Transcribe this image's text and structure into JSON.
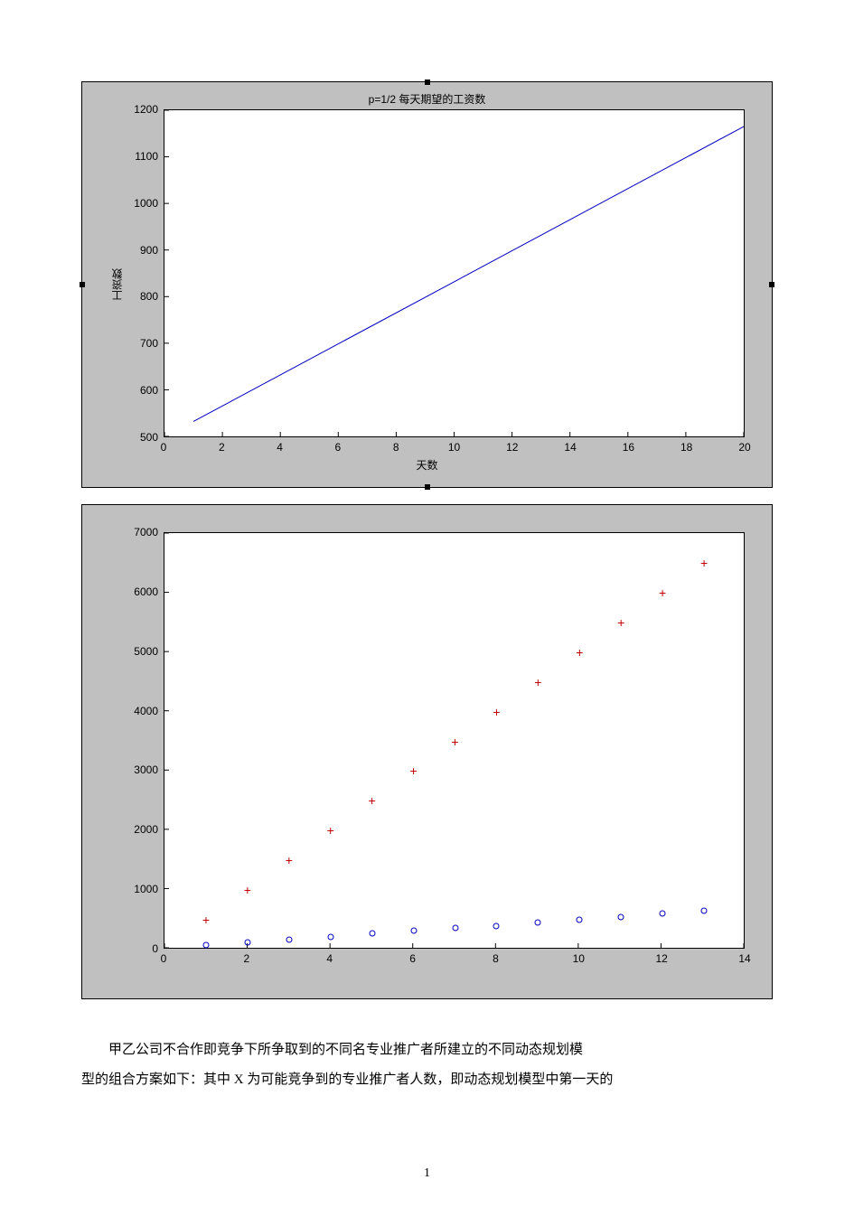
{
  "figure1": {
    "type": "line",
    "title": "p=1/2 每天期望的工资数",
    "xlabel": "天数",
    "ylabel": "工资数",
    "xlim": [
      0,
      20
    ],
    "ylim": [
      500,
      1200
    ],
    "xticks": [
      0,
      2,
      4,
      6,
      8,
      10,
      12,
      14,
      16,
      18,
      20
    ],
    "yticks": [
      500,
      600,
      700,
      800,
      900,
      1000,
      1100,
      1200
    ],
    "line_color": "#0000c0",
    "background_color": "#ffffff",
    "figure_bg": "#c0c0c0",
    "axis_color": "#000000",
    "tick_fontsize": 12,
    "title_fontsize": 12,
    "data": {
      "x": [
        1,
        20
      ],
      "y": [
        532,
        1165
      ]
    },
    "handles": true
  },
  "figure2": {
    "type": "scatter",
    "xlim": [
      0,
      14
    ],
    "ylim": [
      0,
      7000
    ],
    "xticks": [
      0,
      2,
      4,
      6,
      8,
      10,
      12,
      14
    ],
    "yticks": [
      0,
      1000,
      2000,
      3000,
      4000,
      5000,
      6000,
      7000
    ],
    "background_color": "#ffffff",
    "figure_bg": "#c0c0c0",
    "axis_color": "#000000",
    "tick_fontsize": 12,
    "series": [
      {
        "marker": "plus",
        "color": "#c00000",
        "x": [
          1,
          2,
          3,
          4,
          5,
          6,
          7,
          8,
          9,
          10,
          11,
          12,
          13
        ],
        "y": [
          500,
          1000,
          1500,
          2000,
          2500,
          3000,
          3500,
          4000,
          4500,
          5000,
          5500,
          6000,
          6500
        ]
      },
      {
        "marker": "circle",
        "color": "#0000c0",
        "x": [
          1,
          2,
          3,
          4,
          5,
          6,
          7,
          8,
          9,
          10,
          11,
          12,
          13
        ],
        "y": [
          70,
          120,
          170,
          220,
          270,
          320,
          360,
          400,
          450,
          500,
          550,
          600,
          650
        ]
      }
    ]
  },
  "paragraph": {
    "line1": "甲乙公司不合作即竞争下所争取到的不同名专业推广者所建立的不同动态规划模",
    "line2": "型的组合方案如下：其中 X 为可能竞争到的专业推广者人数，即动态规划模型中第一天的"
  },
  "page_number": "1"
}
